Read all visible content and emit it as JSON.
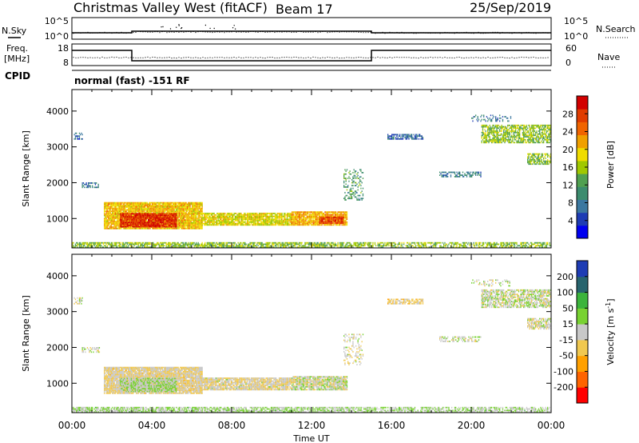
{
  "header": {
    "title": "Christmas Valley West (fitACF)",
    "beam": "Beam 17",
    "date": "25/Sep/2019"
  },
  "params": {
    "nsky_label": "N.Sky",
    "nsky_ticks": [
      "10^5",
      "10^0"
    ],
    "nsearch_label": "N.Search",
    "nsearch_ticks": [
      "10^5",
      "10^0"
    ],
    "freq_label_1": "Freq.",
    "freq_label_2": "[MHz]",
    "freq_ticks": [
      "18",
      "8"
    ],
    "nave_label": "Nave",
    "nave_ticks": [
      "60",
      "0"
    ],
    "cpid_label": "CPID",
    "cpid_text": "normal (fast) -151 RF"
  },
  "colors": {
    "power": [
      "#0000f0",
      "#1e3cb4",
      "#3c78a0",
      "#3c8c6e",
      "#50a050",
      "#a0c800",
      "#f0dc00",
      "#f0a000",
      "#f06400",
      "#e03c00",
      "#d20000"
    ],
    "velocity": [
      "#ff0000",
      "#ff6400",
      "#ffa000",
      "#f0c850",
      "#c8c8c8",
      "#78d232",
      "#3cb43c",
      "#28646e",
      "#1e3cb4"
    ]
  },
  "chart_data": [
    {
      "type": "heatmap",
      "title": "Power",
      "ylabel": "Slant Range [km]",
      "xlabel": "Time UT",
      "x_ticks": [
        "00:00",
        "04:00",
        "08:00",
        "12:00",
        "16:00",
        "20:00",
        "00:00"
      ],
      "xlim": [
        0,
        24
      ],
      "y_ticks": [
        1000,
        2000,
        3000,
        4000
      ],
      "ylim": [
        180,
        4600
      ],
      "colorbar": {
        "label": "Power [dB]",
        "ticks": [
          4,
          8,
          12,
          16,
          20,
          24,
          28
        ],
        "range": [
          0,
          30
        ]
      },
      "regions": [
        {
          "t0": 0.0,
          "t1": 14.0,
          "r0": 180,
          "r1": 320,
          "value": 14,
          "density": 0.75
        },
        {
          "t0": 14.0,
          "t1": 24.0,
          "r0": 180,
          "r1": 320,
          "value": 14,
          "density": 0.6
        },
        {
          "t0": 1.6,
          "t1": 6.5,
          "r0": 700,
          "r1": 1450,
          "value": 19,
          "density": 0.95
        },
        {
          "t0": 2.4,
          "t1": 5.2,
          "r0": 750,
          "r1": 1150,
          "value": 27,
          "density": 0.95
        },
        {
          "t0": 6.5,
          "t1": 11.0,
          "r0": 800,
          "r1": 1150,
          "value": 17,
          "density": 0.9
        },
        {
          "t0": 11.0,
          "t1": 13.8,
          "r0": 800,
          "r1": 1200,
          "value": 20,
          "density": 0.9
        },
        {
          "t0": 12.4,
          "t1": 13.6,
          "r0": 850,
          "r1": 1050,
          "value": 26,
          "density": 0.9
        },
        {
          "t0": 13.6,
          "t1": 14.6,
          "r0": 1500,
          "r1": 2350,
          "value": 11,
          "density": 0.3
        },
        {
          "t0": 0.1,
          "t1": 0.5,
          "r0": 3200,
          "r1": 3400,
          "value": 6,
          "density": 0.5
        },
        {
          "t0": 0.5,
          "t1": 1.4,
          "r0": 1850,
          "r1": 2000,
          "value": 7,
          "density": 0.5
        },
        {
          "t0": 15.8,
          "t1": 17.6,
          "r0": 3200,
          "r1": 3350,
          "value": 6,
          "density": 0.7
        },
        {
          "t0": 18.4,
          "t1": 20.5,
          "r0": 2150,
          "r1": 2300,
          "value": 8,
          "density": 0.5
        },
        {
          "t0": 20.5,
          "t1": 24.0,
          "r0": 3100,
          "r1": 3600,
          "value": 14,
          "density": 0.7
        },
        {
          "t0": 22.8,
          "t1": 24.0,
          "r0": 2500,
          "r1": 2800,
          "value": 14,
          "density": 0.7
        },
        {
          "t0": 20.0,
          "t1": 22.0,
          "r0": 3700,
          "r1": 3900,
          "value": 7,
          "density": 0.25
        }
      ]
    },
    {
      "type": "heatmap",
      "title": "Velocity",
      "ylabel": "Slant Range [km]",
      "xlabel": "Time UT",
      "x_ticks": [
        "00:00",
        "04:00",
        "08:00",
        "12:00",
        "16:00",
        "20:00",
        "00:00"
      ],
      "xlim": [
        0,
        24
      ],
      "y_ticks": [
        1000,
        2000,
        3000,
        4000
      ],
      "ylim": [
        180,
        4600
      ],
      "colorbar": {
        "label": "Velocity [m s^-1]",
        "ticks": [
          -200,
          -100,
          -50,
          -15,
          15,
          50,
          100,
          200
        ],
        "range": [
          -250,
          250
        ]
      },
      "regions": [
        {
          "t0": 0.0,
          "t1": 14.0,
          "r0": 180,
          "r1": 320,
          "value": 30,
          "density": 0.75
        },
        {
          "t0": 14.0,
          "t1": 24.0,
          "r0": 180,
          "r1": 320,
          "value": 30,
          "density": 0.6
        },
        {
          "t0": 1.6,
          "t1": 6.5,
          "r0": 700,
          "r1": 1450,
          "value": -30,
          "density": 0.95
        },
        {
          "t0": 2.4,
          "t1": 5.2,
          "r0": 750,
          "r1": 1150,
          "value": 25,
          "density": 0.95
        },
        {
          "t0": 6.5,
          "t1": 11.0,
          "r0": 800,
          "r1": 1150,
          "value": -25,
          "density": 0.9
        },
        {
          "t0": 11.0,
          "t1": 13.8,
          "r0": 800,
          "r1": 1200,
          "value": 0,
          "density": 0.9
        },
        {
          "t0": 13.6,
          "t1": 14.6,
          "r0": 1500,
          "r1": 2350,
          "value": -10,
          "density": 0.3
        },
        {
          "t0": 0.1,
          "t1": 0.5,
          "r0": 3200,
          "r1": 3400,
          "value": 0,
          "density": 0.5
        },
        {
          "t0": 0.5,
          "t1": 1.4,
          "r0": 1850,
          "r1": 2000,
          "value": 0,
          "density": 0.5
        },
        {
          "t0": 15.8,
          "t1": 17.6,
          "r0": 3200,
          "r1": 3350,
          "value": -40,
          "density": 0.7
        },
        {
          "t0": 18.4,
          "t1": 20.5,
          "r0": 2150,
          "r1": 2300,
          "value": 0,
          "density": 0.5
        },
        {
          "t0": 20.5,
          "t1": 24.0,
          "r0": 3100,
          "r1": 3600,
          "value": 5,
          "density": 0.7
        },
        {
          "t0": 22.8,
          "t1": 24.0,
          "r0": 2500,
          "r1": 2800,
          "value": -5,
          "density": 0.7
        },
        {
          "t0": 20.0,
          "t1": 22.0,
          "r0": 3700,
          "r1": 3900,
          "value": 0,
          "density": 0.25
        }
      ]
    }
  ]
}
